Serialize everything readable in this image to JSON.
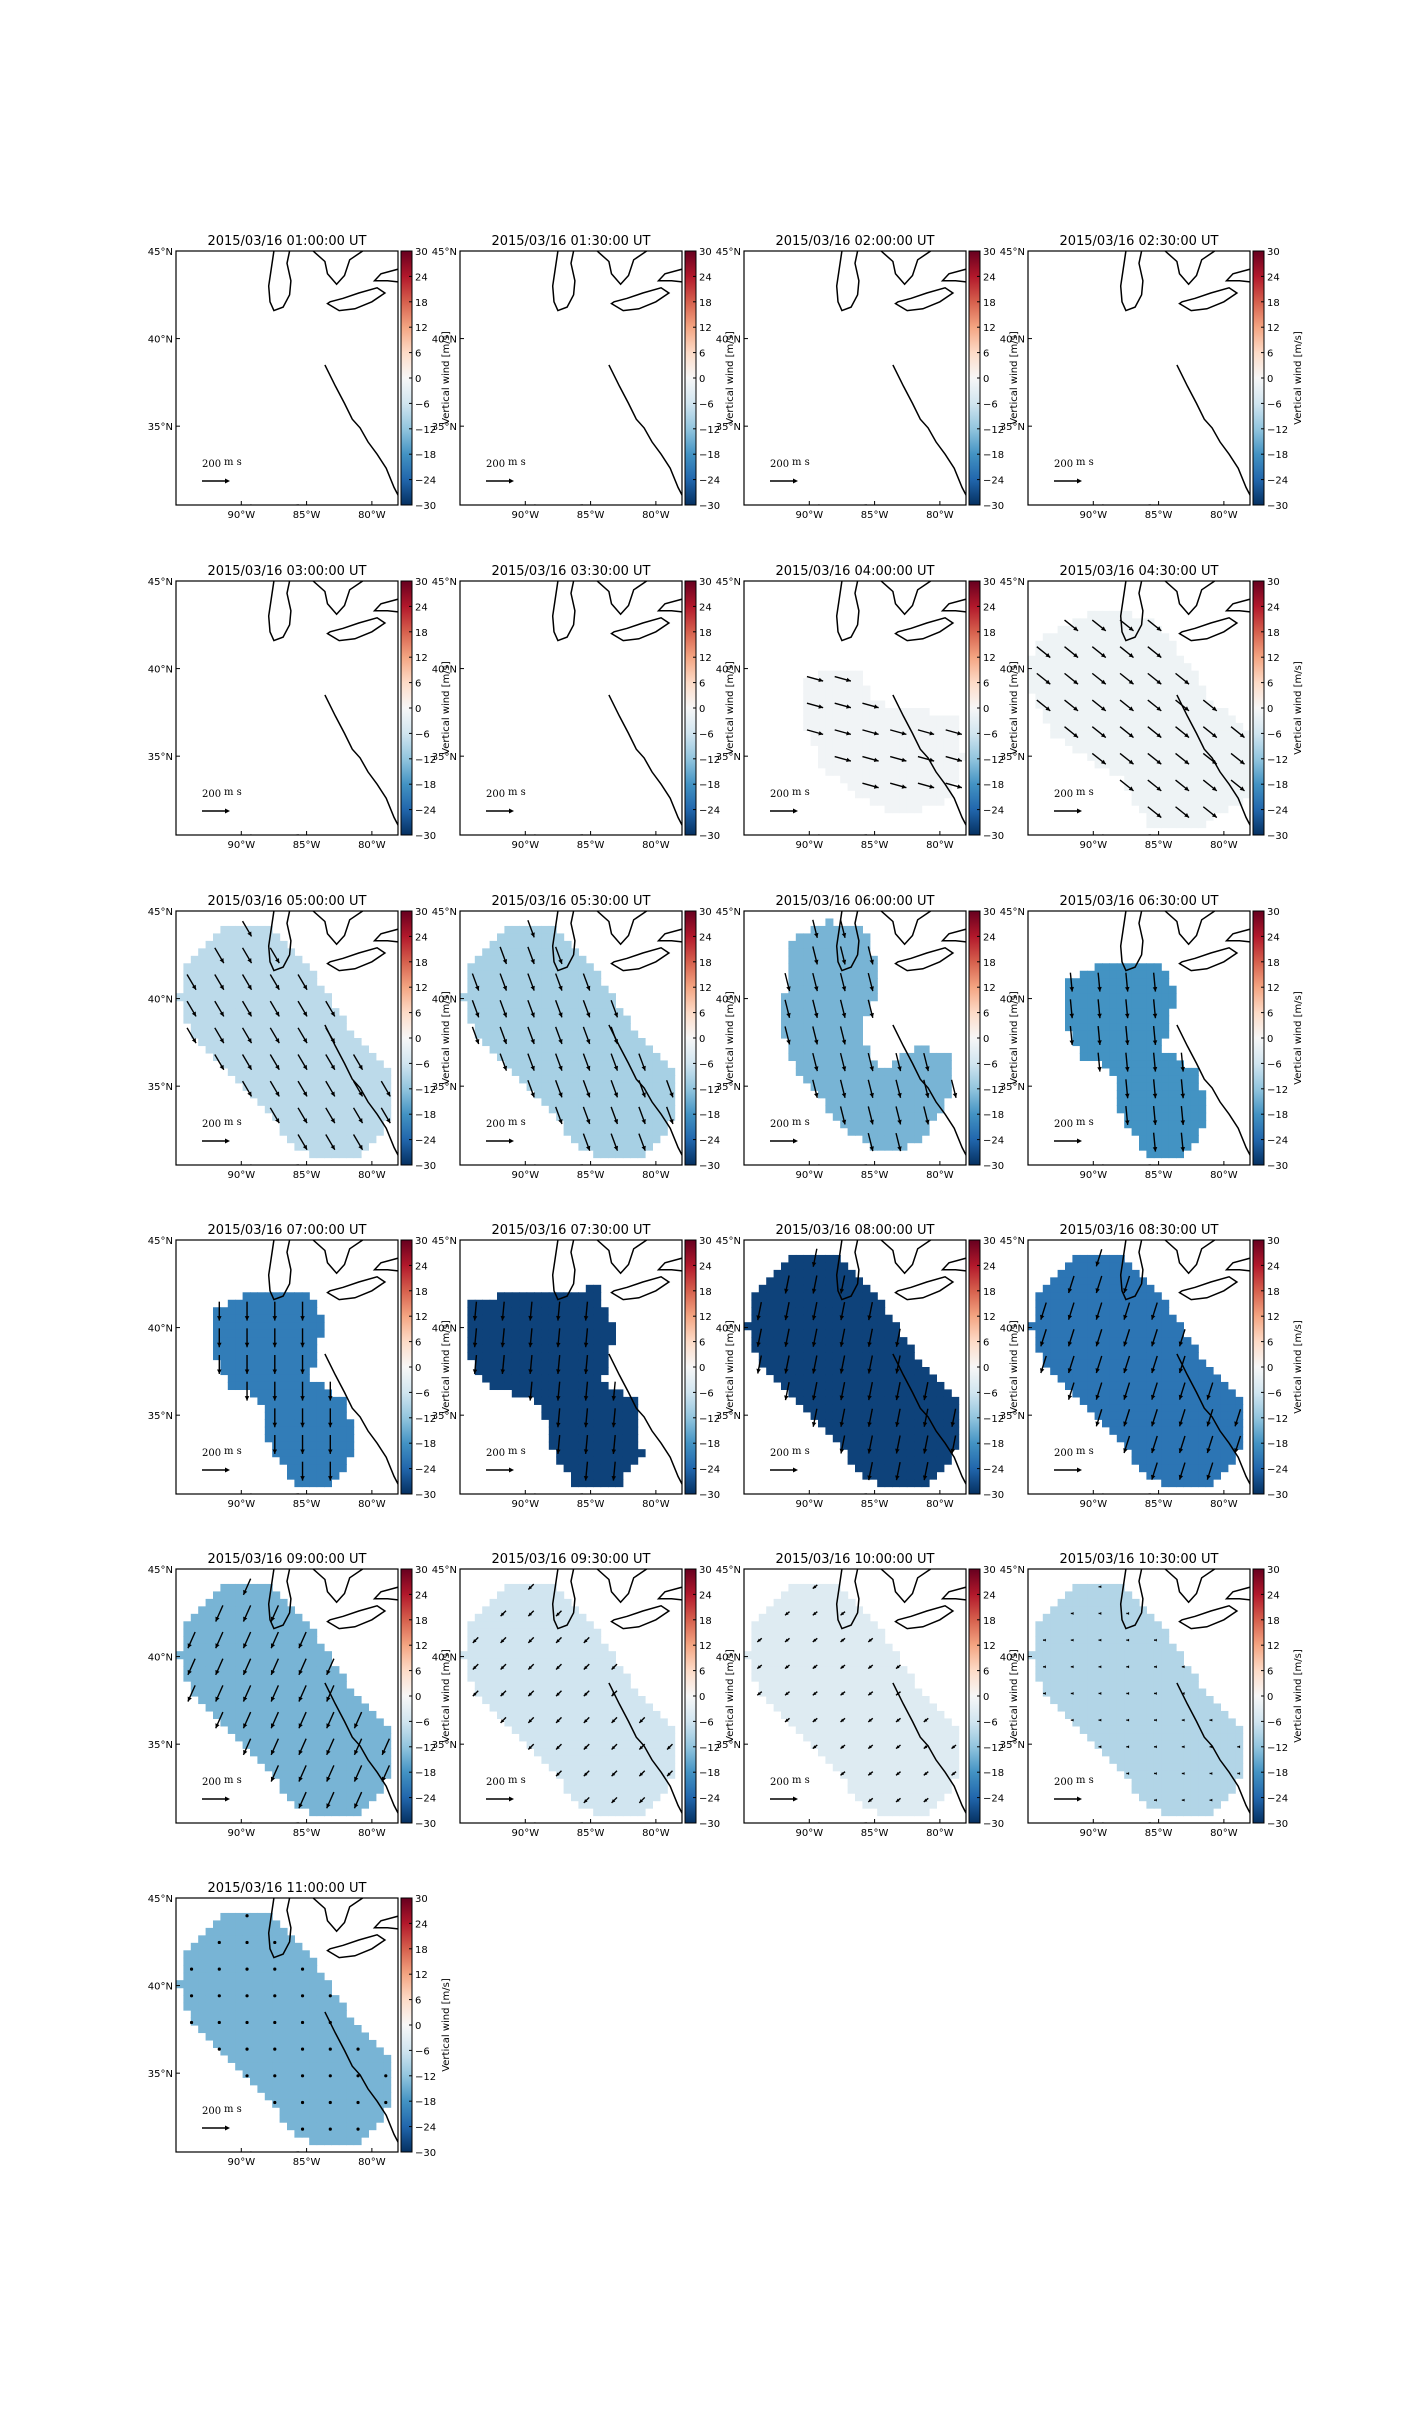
{
  "colors": {
    "colormap": [
      "#053061",
      "#2166ac",
      "#4393c3",
      "#92c5de",
      "#d1e5f0",
      "#f7f7f7",
      "#fddbc7",
      "#f4a582",
      "#d6604d",
      "#b2182b",
      "#67001f"
    ],
    "frame": "#000000",
    "background": "#ffffff"
  },
  "icons": [
    "reference-arrow-icon"
  ],
  "chart_data": {
    "type": "heatmap",
    "colorbar": {
      "label": "Vertical wind [m/s]",
      "range": [
        -30,
        30
      ],
      "ticks": [
        "30",
        "24",
        "18",
        "12",
        "6",
        "0",
        "−6",
        "−12",
        "−18",
        "−24",
        "−30"
      ]
    },
    "lon_range": [
      -95,
      -78
    ],
    "lat_range": [
      30.5,
      45
    ],
    "x_ticks": [
      {
        "lon": -90,
        "label": "90°W"
      },
      {
        "lon": -85,
        "label": "85°W"
      },
      {
        "lon": -80,
        "label": "80°W"
      }
    ],
    "y_ticks": [
      {
        "lat": 45,
        "label": "45°N"
      },
      {
        "lat": 40,
        "label": "40°N"
      },
      {
        "lat": 35,
        "label": "35°N"
      }
    ],
    "reference_vector": "200",
    "reference_vector_unit": "m\ns",
    "panels": [
      {
        "title": "2015/03/16 01:00:00 UT",
        "region": "none",
        "value": null,
        "vector": null
      },
      {
        "title": "2015/03/16 01:30:00 UT",
        "region": "none",
        "value": null,
        "vector": null
      },
      {
        "title": "2015/03/16 02:00:00 UT",
        "region": "none",
        "value": null,
        "vector": null
      },
      {
        "title": "2015/03/16 02:30:00 UT",
        "region": "none",
        "value": null,
        "vector": null
      },
      {
        "title": "2015/03/16 03:00:00 UT",
        "region": "none",
        "value": null,
        "vector": null
      },
      {
        "title": "2015/03/16 03:30:00 UT",
        "region": "none",
        "value": null,
        "vector": null
      },
      {
        "title": "2015/03/16 04:00:00 UT",
        "region": "small",
        "value": -1,
        "vector": [
          0.9,
          -0.25
        ]
      },
      {
        "title": "2015/03/16 04:30:00 UT",
        "region": "medium",
        "value": -1.5,
        "vector": [
          0.75,
          -0.6
        ]
      },
      {
        "title": "2015/03/16 05:00:00 UT",
        "region": "large",
        "value": -8,
        "vector": [
          0.5,
          -0.85
        ]
      },
      {
        "title": "2015/03/16 05:30:00 UT",
        "region": "large",
        "value": -10,
        "vector": [
          0.35,
          -0.95
        ]
      },
      {
        "title": "2015/03/16 06:00:00 UT",
        "region": "c-shape",
        "value": -14,
        "vector": [
          0.25,
          -1.0
        ]
      },
      {
        "title": "2015/03/16 06:30:00 UT",
        "region": "s-shape",
        "value": -18,
        "vector": [
          0.1,
          -1.05
        ]
      },
      {
        "title": "2015/03/16 07:00:00 UT",
        "region": "s-shape",
        "value": -21,
        "vector": [
          0.0,
          -1.05
        ]
      },
      {
        "title": "2015/03/16 07:30:00 UT",
        "region": "s-wide",
        "value": -28,
        "vector": [
          -0.1,
          -1.05
        ]
      },
      {
        "title": "2015/03/16 08:00:00 UT",
        "region": "large",
        "value": -28,
        "vector": [
          -0.2,
          -1.0
        ]
      },
      {
        "title": "2015/03/16 08:30:00 UT",
        "region": "large",
        "value": -22,
        "vector": [
          -0.3,
          -0.95
        ]
      },
      {
        "title": "2015/03/16 09:00:00 UT",
        "region": "large",
        "value": -14,
        "vector": [
          -0.4,
          -0.9
        ]
      },
      {
        "title": "2015/03/16 09:30:00 UT",
        "region": "large",
        "value": -6,
        "vector": [
          -0.3,
          -0.3
        ]
      },
      {
        "title": "2015/03/16 10:00:00 UT",
        "region": "large",
        "value": -4,
        "vector": [
          -0.25,
          -0.2
        ]
      },
      {
        "title": "2015/03/16 10:30:00 UT",
        "region": "large",
        "value": -9,
        "vector": [
          -0.05,
          0.0
        ]
      },
      {
        "title": "2015/03/16 11:00:00 UT",
        "region": "large",
        "value": -14,
        "vector": [
          0.0,
          0.0
        ]
      }
    ]
  }
}
